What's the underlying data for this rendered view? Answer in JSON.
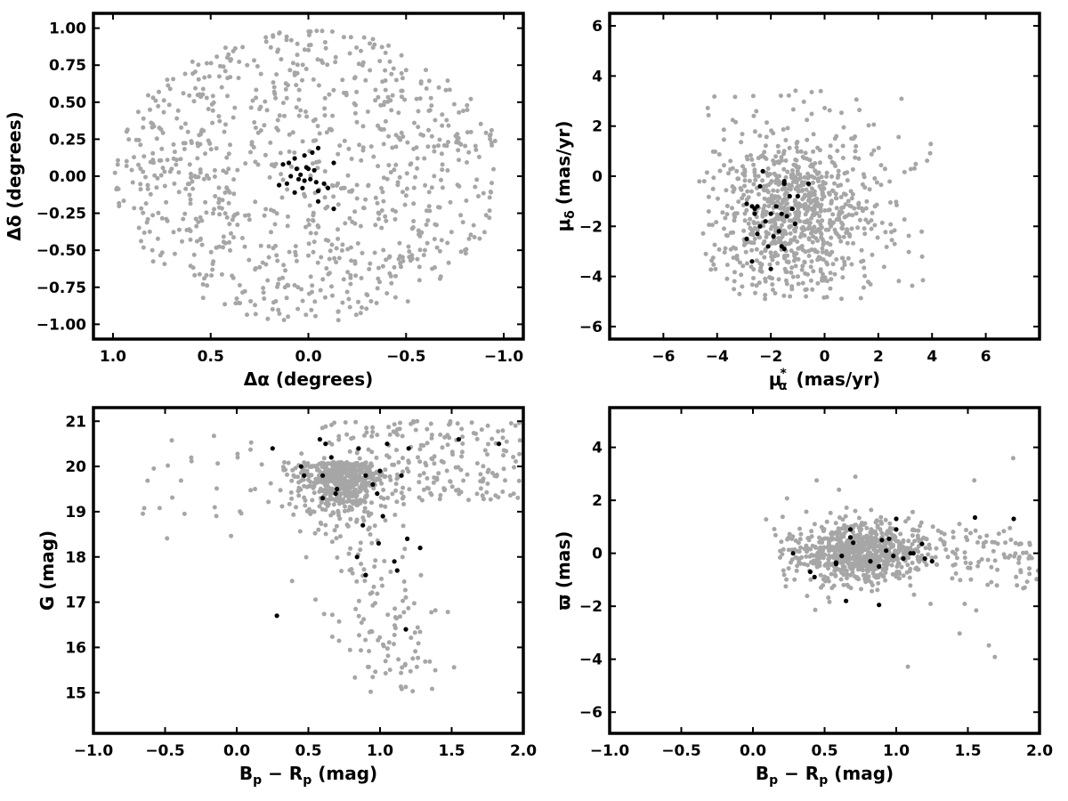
{
  "colors": {
    "field": "#a6a6a6",
    "member": "#000000",
    "frame": "#000000"
  },
  "chart_data": [
    {
      "type": "scatter",
      "xlabel": "Δα (degrees)",
      "ylabel": "Δδ (degrees)",
      "xlim": [
        1.1,
        -1.1
      ],
      "ylim": [
        -1.1,
        1.1
      ],
      "xticks": [
        1.0,
        0.5,
        0.0,
        -0.5,
        -1.0
      ],
      "xtick_labels": [
        "1.0",
        "0.5",
        "0.0",
        "−0.5",
        "−1.0"
      ],
      "yticks": [
        -1.0,
        -0.75,
        -0.5,
        -0.25,
        0.0,
        0.25,
        0.5,
        0.75,
        1.0
      ],
      "ytick_labels": [
        "−1.00",
        "−0.75",
        "−0.50",
        "−0.25",
        "0.00",
        "0.25",
        "0.50",
        "0.75",
        "1.00"
      ],
      "grid": false,
      "series": [
        {
          "role": "field",
          "distribution": "disk",
          "radius_x": 1.0,
          "radius_y": 1.0,
          "count": 900
        },
        {
          "role": "members",
          "points": [
            [
              0.07,
              0.12
            ],
            [
              0.02,
              0.14
            ],
            [
              -0.02,
              0.16
            ],
            [
              -0.05,
              0.19
            ],
            [
              0.1,
              0.09
            ],
            [
              0.13,
              0.08
            ],
            [
              -0.13,
              0.09
            ],
            [
              0.06,
              0.05
            ],
            [
              0.0,
              0.05
            ],
            [
              -0.03,
              0.04
            ],
            [
              0.09,
              0.0
            ],
            [
              0.05,
              -0.02
            ],
            [
              0.02,
              -0.03
            ],
            [
              -0.01,
              -0.02
            ],
            [
              -0.04,
              -0.04
            ],
            [
              0.11,
              -0.05
            ],
            [
              0.15,
              -0.06
            ],
            [
              -0.08,
              -0.05
            ],
            [
              0.03,
              -0.08
            ],
            [
              -0.05,
              -0.1
            ],
            [
              -0.1,
              -0.08
            ],
            [
              0.07,
              -0.11
            ],
            [
              -0.05,
              -0.17
            ],
            [
              -0.13,
              -0.22
            ],
            [
              0.01,
              0.06
            ],
            [
              0.04,
              0.01
            ]
          ]
        }
      ]
    },
    {
      "type": "scatter",
      "xlabel": "μ",
      "xlabel_sub": "α",
      "xlabel_sup": "*",
      "xlabel_unit": "(mas/yr)",
      "ylabel": "μ",
      "ylabel_sub": "δ",
      "ylabel_unit": "(mas/yr)",
      "xlim": [
        -8,
        8
      ],
      "ylim": [
        -6.5,
        6.5
      ],
      "xticks": [
        -6,
        -4,
        -2,
        0,
        2,
        4,
        6
      ],
      "xtick_labels": [
        "−6",
        "−4",
        "−2",
        "0",
        "2",
        "4",
        "6"
      ],
      "yticks": [
        -6,
        -4,
        -2,
        0,
        2,
        4,
        6
      ],
      "ytick_labels": [
        "−6",
        "−4",
        "−2",
        "0",
        "2",
        "4",
        "6"
      ],
      "grid": false,
      "series": [
        {
          "role": "field",
          "distribution": "cloud",
          "center": [
            -1.0,
            -1.6
          ],
          "spread": [
            1.5,
            1.6
          ],
          "count": 900
        },
        {
          "role": "members",
          "points": [
            [
              -2.3,
              0.2
            ],
            [
              -2.7,
              -1.2
            ],
            [
              -2.6,
              -1.3
            ],
            [
              -2.5,
              -1.2
            ],
            [
              -2.4,
              -0.4
            ],
            [
              -2.2,
              -1.8
            ],
            [
              -2.0,
              -1.5
            ],
            [
              -2.9,
              -1.1
            ],
            [
              -1.8,
              -1.2
            ],
            [
              -1.5,
              -0.2
            ],
            [
              -1.5,
              -0.3
            ],
            [
              -1.6,
              -1.5
            ],
            [
              -1.9,
              -2.4
            ],
            [
              -2.1,
              -2.8
            ],
            [
              -2.4,
              -2.0
            ],
            [
              -2.6,
              -1.5
            ],
            [
              -2.5,
              -2.3
            ],
            [
              -1.2,
              -1.3
            ],
            [
              -1.0,
              -0.8
            ],
            [
              -0.6,
              -0.3
            ],
            [
              -1.3,
              -0.8
            ],
            [
              -1.6,
              -2.8
            ],
            [
              -2.9,
              -2.5
            ],
            [
              -2.0,
              -3.7
            ],
            [
              -2.7,
              -3.4
            ],
            [
              -1.7,
              -2.2
            ],
            [
              -1.4,
              -1.6
            ],
            [
              -1.1,
              -1.9
            ],
            [
              -1.5,
              -2.9
            ]
          ]
        }
      ]
    },
    {
      "type": "scatter",
      "xlabel": "B",
      "xlabel_sub1": "p",
      "xlabel_mid": " − R",
      "xlabel_sub2": "p",
      "xlabel_unit": " (mag)",
      "ylabel": "G (mag)",
      "xlim": [
        -1.0,
        2.0
      ],
      "ylim": [
        14.1,
        21.3
      ],
      "xticks": [
        -1.0,
        -0.5,
        0.0,
        0.5,
        1.0,
        1.5,
        2.0
      ],
      "xtick_labels": [
        "−1.0",
        "−0.5",
        "0.0",
        "0.5",
        "1.0",
        "1.5",
        "2.0"
      ],
      "yticks": [
        15,
        16,
        17,
        18,
        19,
        20,
        21
      ],
      "ytick_labels": [
        "15",
        "16",
        "17",
        "18",
        "19",
        "20",
        "21"
      ],
      "grid": false,
      "series": [
        {
          "role": "field",
          "distribution": "cmd",
          "count": 900
        },
        {
          "role": "members",
          "points": [
            [
              0.25,
              20.4
            ],
            [
              0.45,
              20.0
            ],
            [
              0.47,
              19.8
            ],
            [
              0.6,
              19.8
            ],
            [
              0.58,
              20.6
            ],
            [
              0.62,
              20.5
            ],
            [
              0.66,
              20.2
            ],
            [
              0.69,
              19.4
            ],
            [
              0.7,
              19.5
            ],
            [
              0.85,
              20.4
            ],
            [
              1.05,
              20.5
            ],
            [
              1.2,
              20.4
            ],
            [
              1.55,
              20.6
            ],
            [
              1.83,
              20.5
            ],
            [
              1.0,
              19.9
            ],
            [
              1.15,
              19.8
            ],
            [
              0.9,
              19.8
            ],
            [
              0.95,
              19.6
            ],
            [
              0.98,
              19.4
            ],
            [
              1.02,
              18.9
            ],
            [
              0.88,
              18.7
            ],
            [
              0.99,
              18.3
            ],
            [
              0.84,
              18.0
            ],
            [
              0.9,
              17.6
            ],
            [
              1.1,
              17.9
            ],
            [
              1.12,
              17.7
            ],
            [
              1.19,
              18.4
            ],
            [
              1.28,
              18.2
            ],
            [
              0.28,
              16.7
            ],
            [
              1.18,
              16.4
            ],
            [
              0.6,
              19.3
            ]
          ]
        }
      ]
    },
    {
      "type": "scatter",
      "xlabel": "B",
      "xlabel_sub1": "p",
      "xlabel_mid": " − R",
      "xlabel_sub2": "p",
      "xlabel_unit": " (mag)",
      "ylabel": "ϖ (mas)",
      "xlim": [
        -1.0,
        2.0
      ],
      "ylim": [
        -6.8,
        5.5
      ],
      "xticks": [
        -1.0,
        -0.5,
        0.0,
        0.5,
        1.0,
        1.5,
        2.0
      ],
      "xtick_labels": [
        "−1.0",
        "−0.5",
        "0.0",
        "0.5",
        "1.0",
        "1.5",
        "2.0"
      ],
      "yticks": [
        -6,
        -4,
        -2,
        0,
        2,
        4
      ],
      "ytick_labels": [
        "−6",
        "−4",
        "−2",
        "0",
        "2",
        "4"
      ],
      "grid": false,
      "series": [
        {
          "role": "field",
          "distribution": "band",
          "center": [
            0.75,
            0.0
          ],
          "count": 900
        },
        {
          "role": "members",
          "points": [
            [
              0.28,
              0.0
            ],
            [
              0.4,
              -0.7
            ],
            [
              0.43,
              -0.9
            ],
            [
              0.58,
              -0.4
            ],
            [
              0.62,
              -0.1
            ],
            [
              0.65,
              -1.8
            ],
            [
              0.68,
              0.9
            ],
            [
              0.68,
              0.6
            ],
            [
              0.7,
              0.4
            ],
            [
              0.82,
              -0.3
            ],
            [
              0.88,
              -0.5
            ],
            [
              0.9,
              0.5
            ],
            [
              0.93,
              0.1
            ],
            [
              0.95,
              0.55
            ],
            [
              0.98,
              -0.1
            ],
            [
              1.0,
              1.3
            ],
            [
              1.0,
              0.9
            ],
            [
              1.05,
              -0.2
            ],
            [
              1.1,
              0.0
            ],
            [
              1.12,
              0.0
            ],
            [
              1.18,
              0.35
            ],
            [
              1.2,
              -0.2
            ],
            [
              1.25,
              -0.3
            ],
            [
              1.55,
              1.35
            ],
            [
              1.82,
              1.3
            ],
            [
              0.88,
              -1.95
            ],
            [
              0.58,
              -0.35
            ]
          ]
        }
      ]
    }
  ]
}
